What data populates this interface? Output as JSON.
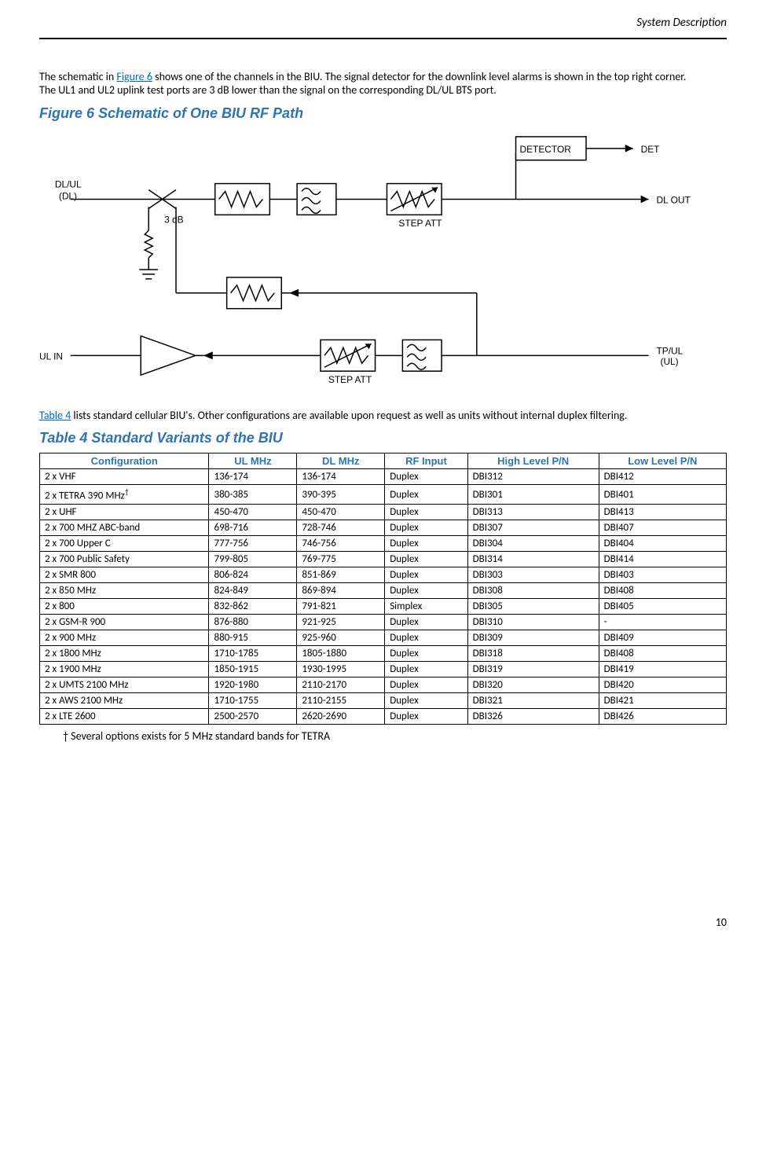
{
  "header": {
    "title": "System Description"
  },
  "intro": {
    "p1a": "The schematic in ",
    "p1_link": "Figure 6",
    "p1b": " shows one of the channels in the BIU. The signal detector for the downlink level alarms is shown in the top right corner.",
    "p2": "The UL1 and UL2 uplink test ports are 3 dB lower than the signal on the corresponding DL/UL BTS port."
  },
  "figure": {
    "title": "Figure 6    Schematic of One BIU RF Path",
    "labels": {
      "dlul": "DL/UL",
      "dl": "(DL)",
      "threedb": "3 dB",
      "ulin": "UL IN",
      "stepatt": "STEP ATT",
      "detector": "DETECTOR",
      "det": "DET",
      "dlout": "DL OUT",
      "tpul": "TP/UL",
      "ul": "(UL)"
    }
  },
  "table_intro": {
    "link": "Table 4",
    "rest": " lists standard cellular BIU's. Other configurations are available upon request as well as units without internal duplex filtering."
  },
  "table": {
    "title": "Table 4    Standard Variants of the BIU",
    "columns": [
      "Configuration",
      "UL MHz",
      "DL MHz",
      "RF Input",
      "High Level P/N",
      "Low Level P/N"
    ],
    "rows": [
      [
        "2 x VHF",
        "136-174",
        "136-174",
        "Duplex",
        "DBI312",
        "DBI412"
      ],
      [
        "2 x TETRA 390 MHz†",
        "380-385",
        "390-395",
        "Duplex",
        "DBI301",
        "DBI401"
      ],
      [
        "2 x UHF",
        "450-470",
        "450-470",
        "Duplex",
        "DBI313",
        "DBI413"
      ],
      [
        "2 x 700 MHZ ABC-band",
        "698-716",
        "728-746",
        "Duplex",
        "DBI307",
        "DBI407"
      ],
      [
        "2 x 700 Upper C",
        "777-756",
        "746-756",
        "Duplex",
        "DBI304",
        "DBI404"
      ],
      [
        "2 x 700 Public Safety",
        "799-805",
        "769-775",
        "Duplex",
        "DBI314",
        "DBI414"
      ],
      [
        "2 x SMR 800",
        "806-824",
        "851-869",
        "Duplex",
        "DBI303",
        "DBI403"
      ],
      [
        "2 x 850 MHz",
        "824-849",
        "869-894",
        "Duplex",
        "DBI308",
        "DBI408"
      ],
      [
        "2 x 800",
        "832-862",
        "791-821",
        "Simplex",
        "DBI305",
        "DBI405"
      ],
      [
        "2 x GSM-R 900",
        "876-880",
        "921-925",
        "Duplex",
        "DBI310",
        "-"
      ],
      [
        "2 x 900 MHz",
        "880-915",
        "925-960",
        "Duplex",
        "DBI309",
        "DBI409"
      ],
      [
        "2 x 1800 MHz",
        "1710-1785",
        "1805-1880",
        "Duplex",
        "DBI318",
        "DBI408"
      ],
      [
        "2 x 1900 MHz",
        "1850-1915",
        "1930-1995",
        "Duplex",
        "DBI319",
        "DBI419"
      ],
      [
        "2 x UMTS 2100 MHz",
        "1920-1980",
        "2110-2170",
        "Duplex",
        "DBI320",
        "DBI420"
      ],
      [
        "2 x AWS 2100 MHz",
        "1710-1755",
        "2110-2155",
        "Duplex",
        "DBI321",
        "DBI421"
      ],
      [
        "2 x LTE 2600",
        "2500-2570",
        "2620-2690",
        "Duplex",
        "DBI326",
        "DBI426"
      ]
    ]
  },
  "footnote": "†  Several options exists for 5 MHz standard bands for TETRA",
  "page_num": "10"
}
